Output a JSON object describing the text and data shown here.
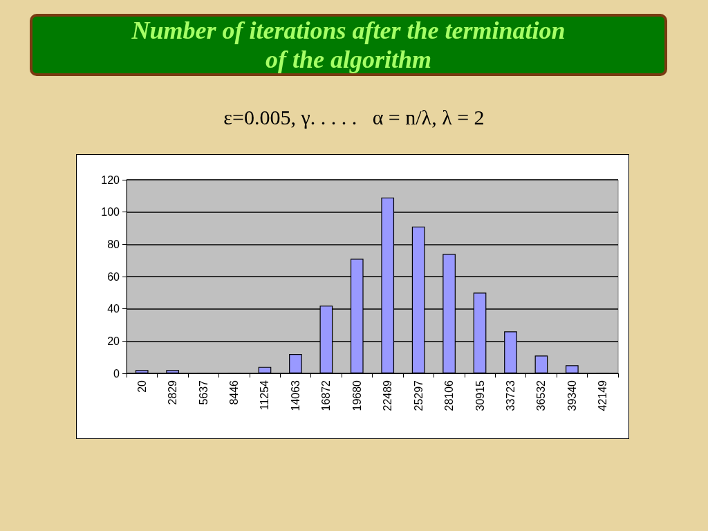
{
  "chart_data": {
    "type": "bar",
    "title": "Number of iterations after the termination of the algorithm",
    "subtitle": "ε=0.005, γ. . . . .   α = n/λ, λ = 2",
    "categories": [
      "20",
      "2829",
      "5637",
      "8446",
      "11254",
      "14063",
      "16872",
      "19680",
      "22489",
      "25297",
      "28106",
      "30915",
      "33723",
      "36532",
      "39340",
      "42149"
    ],
    "values": [
      2,
      2,
      0,
      0,
      4,
      12,
      42,
      71,
      109,
      91,
      74,
      50,
      26,
      11,
      5,
      0
    ],
    "color": "#9999ff",
    "ylim": [
      0,
      120
    ],
    "yticks": [
      0,
      20,
      40,
      60,
      80,
      100,
      120
    ],
    "grid": "y"
  }
}
